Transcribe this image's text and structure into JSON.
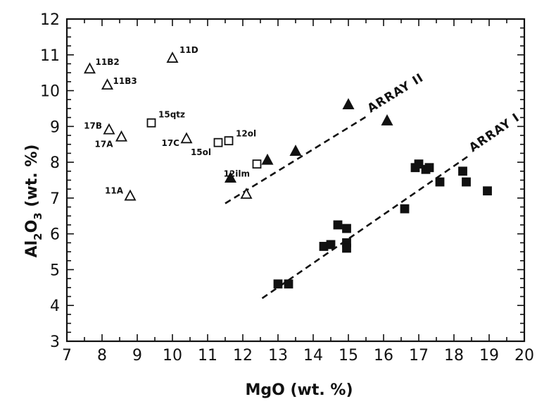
{
  "chart_data": {
    "type": "scatter",
    "xlabel": "MgO (wt. %)",
    "ylabel_main": "Al",
    "ylabel_sub": "2",
    "ylabel_mid": "O",
    "ylabel_sub2": "3",
    "ylabel_tail": " (wt. %)",
    "xlim": [
      7,
      20
    ],
    "ylim": [
      3,
      12
    ],
    "x_ticks": [
      7,
      8,
      9,
      10,
      11,
      12,
      13,
      14,
      15,
      16,
      17,
      18,
      19,
      20
    ],
    "y_ticks": [
      3,
      4,
      5,
      6,
      7,
      8,
      9,
      10,
      11,
      12
    ],
    "series": [
      {
        "marker": "open-triangle",
        "points": [
          {
            "x": 7.65,
            "y": 10.6,
            "label": "11B2"
          },
          {
            "x": 8.15,
            "y": 10.15,
            "label": "11B3"
          },
          {
            "x": 10.0,
            "y": 10.9,
            "label": "11D"
          },
          {
            "x": 8.2,
            "y": 8.9,
            "label": "17B"
          },
          {
            "x": 8.55,
            "y": 8.7,
            "label": "17A"
          },
          {
            "x": 10.4,
            "y": 8.65,
            "label": "17C"
          },
          {
            "x": 8.8,
            "y": 7.05,
            "label": "11A"
          },
          {
            "x": 12.1,
            "y": 7.1,
            "label": ""
          }
        ]
      },
      {
        "marker": "open-square",
        "points": [
          {
            "x": 9.4,
            "y": 9.1,
            "label": "15qtz"
          },
          {
            "x": 11.3,
            "y": 8.55,
            "label": "15ol"
          },
          {
            "x": 11.6,
            "y": 8.6,
            "label": "12ol"
          },
          {
            "x": 12.4,
            "y": 7.95,
            "label": "12ilm"
          }
        ]
      },
      {
        "marker": "filled-triangle",
        "points": [
          {
            "x": 11.65,
            "y": 7.55
          },
          {
            "x": 12.7,
            "y": 8.05
          },
          {
            "x": 13.5,
            "y": 8.3
          },
          {
            "x": 15.0,
            "y": 9.6
          },
          {
            "x": 16.1,
            "y": 9.15
          }
        ]
      },
      {
        "marker": "filled-square",
        "points": [
          {
            "x": 13.0,
            "y": 4.6
          },
          {
            "x": 13.3,
            "y": 4.6
          },
          {
            "x": 14.3,
            "y": 5.65
          },
          {
            "x": 14.5,
            "y": 5.7
          },
          {
            "x": 14.7,
            "y": 6.25
          },
          {
            "x": 14.95,
            "y": 6.15
          },
          {
            "x": 14.95,
            "y": 5.75
          },
          {
            "x": 14.95,
            "y": 5.6
          },
          {
            "x": 16.6,
            "y": 6.7
          },
          {
            "x": 16.9,
            "y": 7.85
          },
          {
            "x": 17.0,
            "y": 7.95
          },
          {
            "x": 17.2,
            "y": 7.8
          },
          {
            "x": 17.3,
            "y": 7.85
          },
          {
            "x": 17.6,
            "y": 7.45
          },
          {
            "x": 18.25,
            "y": 7.75
          },
          {
            "x": 18.35,
            "y": 7.45
          },
          {
            "x": 18.95,
            "y": 7.2
          }
        ]
      }
    ],
    "arrays": [
      {
        "label": "ARRAY II",
        "x1": 11.5,
        "y1": 6.85,
        "x2": 15.55,
        "y2": 9.3
      },
      {
        "label": "ARRAY I",
        "x1": 12.55,
        "y1": 4.2,
        "x2": 18.45,
        "y2": 8.2
      }
    ]
  }
}
